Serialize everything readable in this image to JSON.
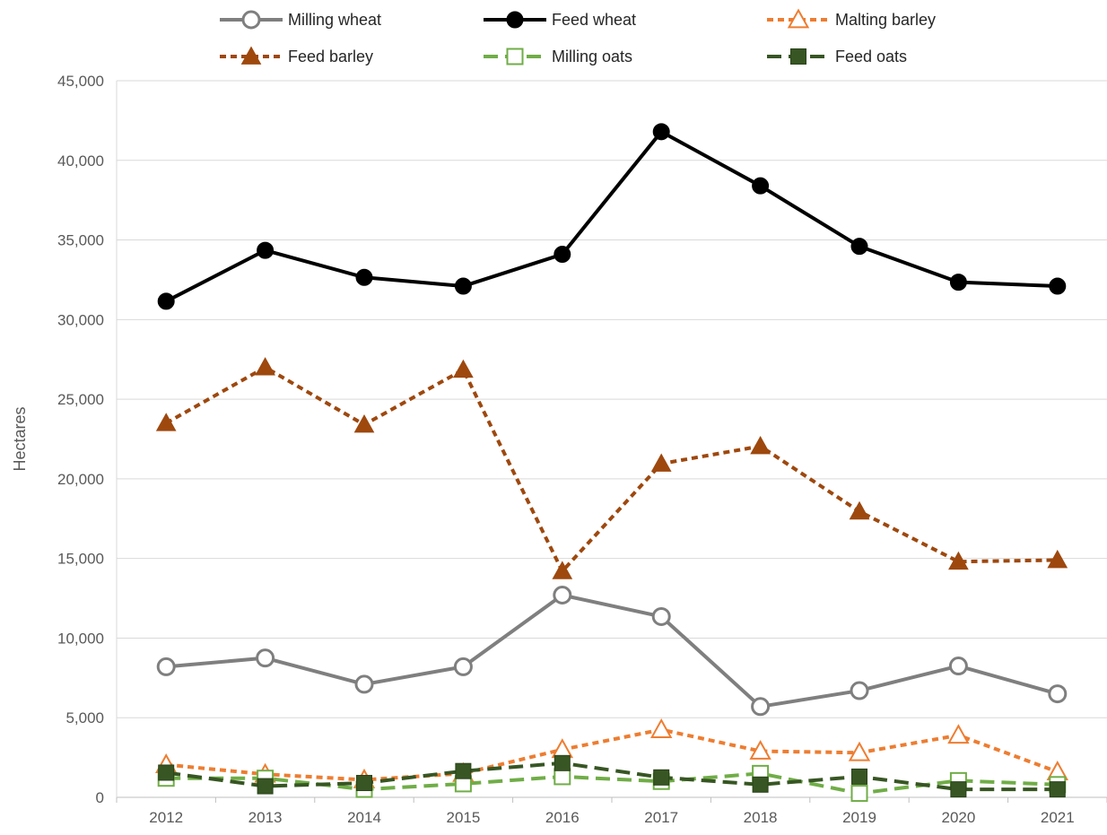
{
  "chart_data": {
    "type": "line",
    "title": "",
    "xlabel": "",
    "ylabel": "Hectares",
    "categories": [
      "2012",
      "2013",
      "2014",
      "2015",
      "2016",
      "2017",
      "2018",
      "2019",
      "2020",
      "2021"
    ],
    "ylim": [
      0,
      45000
    ],
    "yticks": [
      0,
      5000,
      10000,
      15000,
      20000,
      25000,
      30000,
      35000,
      40000,
      45000
    ],
    "ytick_labels": [
      "0",
      "5,000",
      "10,000",
      "15,000",
      "20,000",
      "25,000",
      "30,000",
      "35,000",
      "40,000",
      "45,000"
    ],
    "grid": true,
    "legend_position": "top",
    "series": [
      {
        "name": "Milling wheat",
        "color": "#7f7f7f",
        "dash": "solid",
        "marker": "circle-open",
        "values": [
          8200,
          8750,
          7100,
          8200,
          12700,
          11350,
          5700,
          6700,
          8250,
          6500
        ]
      },
      {
        "name": "Feed wheat",
        "color": "#000000",
        "dash": "solid",
        "marker": "circle-filled",
        "values": [
          31150,
          34350,
          32650,
          32100,
          34100,
          41800,
          38400,
          34600,
          32350,
          32100
        ]
      },
      {
        "name": "Malting barley",
        "color": "#ed7d31",
        "dash": "short",
        "marker": "triangle-open",
        "values": [
          2050,
          1450,
          1100,
          1500,
          3000,
          4250,
          2900,
          2800,
          3900,
          1600
        ]
      },
      {
        "name": "Feed barley",
        "color": "#9e480e",
        "dash": "short",
        "marker": "triangle-filled",
        "values": [
          23500,
          27000,
          23400,
          26850,
          14200,
          20950,
          22050,
          17950,
          14800,
          14900
        ]
      },
      {
        "name": "Milling oats",
        "color": "#70ad47",
        "dash": "long",
        "marker": "square-open",
        "values": [
          1200,
          1200,
          500,
          850,
          1300,
          1000,
          1500,
          250,
          1050,
          800
        ]
      },
      {
        "name": "Feed oats",
        "color": "#375623",
        "dash": "long",
        "marker": "square-filled",
        "values": [
          1550,
          700,
          900,
          1650,
          2150,
          1250,
          800,
          1300,
          500,
          500
        ]
      }
    ]
  }
}
